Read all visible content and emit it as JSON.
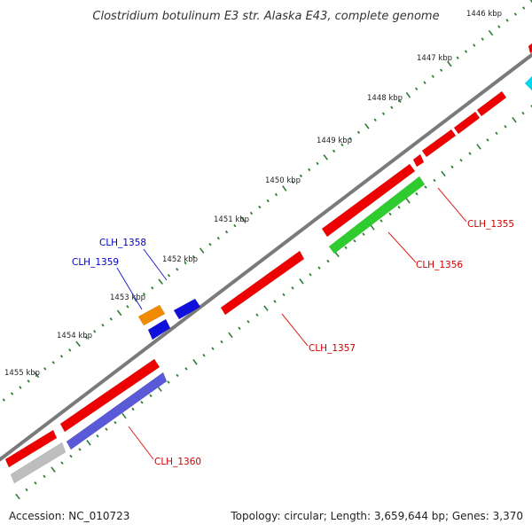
{
  "title": "Clostridium botulinum E3 str. Alaska E43, complete genome",
  "footer": {
    "accession": "Accession: NC_010723",
    "info": "Topology: circular; Length: 3,659,644 bp; Genes: 3,370"
  },
  "ticks": [
    "1446 kbp",
    "1447 kbp",
    "1448 kbp",
    "1449 kbp",
    "1450 kbp",
    "1451 kbp",
    "1452 kbp",
    "1453 kbp",
    "1454 kbp",
    "1455 kbp"
  ],
  "gene_labels": [
    {
      "text": "CLH_1355",
      "strand": "plus"
    },
    {
      "text": "CLH_1356",
      "strand": "plus"
    },
    {
      "text": "CLH_1357",
      "strand": "plus"
    },
    {
      "text": "CLH_1360",
      "strand": "plus"
    },
    {
      "text": "CLH_1358",
      "strand": "minus"
    },
    {
      "text": "CLH_1359",
      "strand": "minus"
    }
  ],
  "colors": {
    "backbone": "#7a7a7a",
    "tick_dot": "#2e7d32",
    "gene_red": "#ee0000",
    "gene_green": "#2ecc2e",
    "gene_blue": "#1010dd",
    "gene_orange": "#f08a00",
    "gene_gray": "#bdbdbd",
    "gene_slate": "#5a5ad8",
    "gene_cyan": "#00d8f0",
    "label_plus": "#cc0000",
    "label_minus": "#0000bb",
    "leader_plus": "#dd2222",
    "leader_minus": "#2222cc"
  }
}
